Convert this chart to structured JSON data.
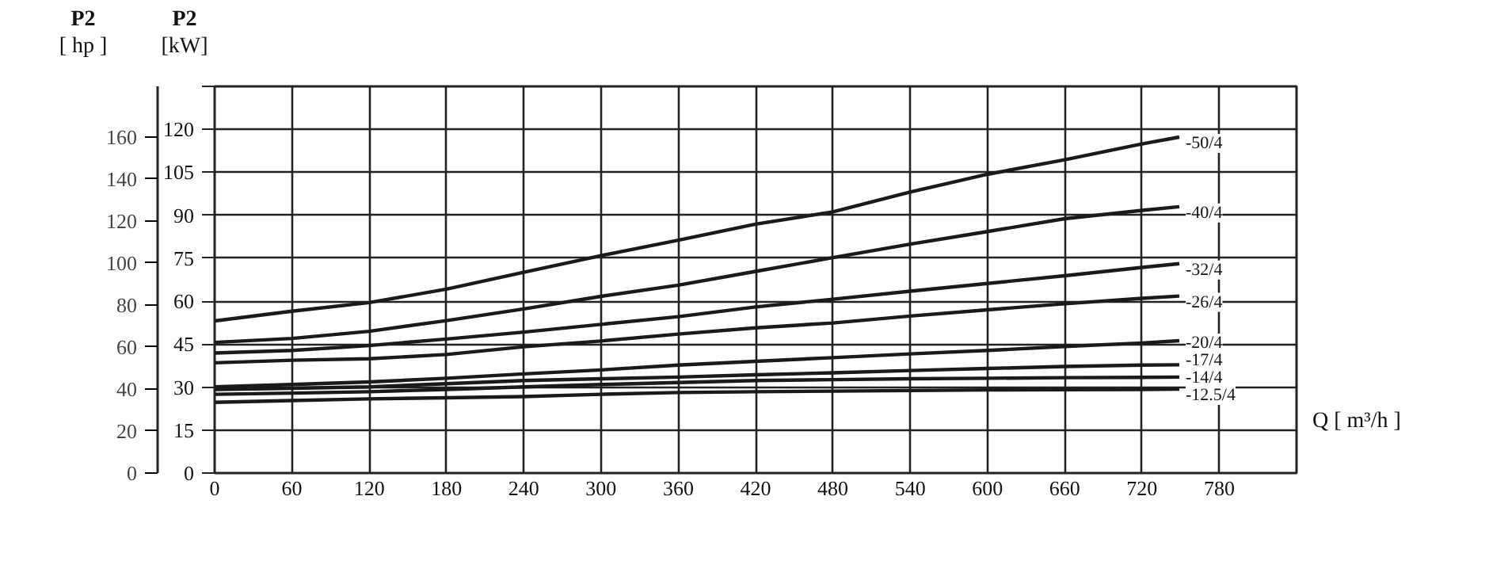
{
  "chart_data": {
    "type": "line",
    "xlabel": "Q [ m³/h ]",
    "ylabel": "P2 [kW]",
    "y2label": "P2 [ hp ]",
    "xlim": [
      0,
      840
    ],
    "xticks": [
      0,
      60,
      120,
      180,
      240,
      300,
      360,
      420,
      480,
      540,
      600,
      660,
      720,
      780,
      {
        "value": 840,
        "label": null
      }
    ],
    "ylim": [
      0,
      135
    ],
    "yticks": [
      0,
      15,
      30,
      45,
      60,
      75,
      90,
      105,
      120,
      {
        "value": 135,
        "label": null
      }
    ],
    "y2lim": [
      0,
      184
    ],
    "y2ticks": [
      0,
      20,
      40,
      60,
      80,
      100,
      120,
      140,
      160
    ],
    "grid": true,
    "legend": false,
    "marker": "none",
    "line_style": "solid",
    "x": [
      0,
      60,
      120,
      180,
      240,
      300,
      360,
      420,
      480,
      540,
      600,
      660,
      720,
      749
    ],
    "series": [
      {
        "name": "-50/4",
        "color": "#1a1a1a",
        "values": [
          53.1,
          56.5,
          59.5,
          64.2,
          70.1,
          75.9,
          81.3,
          86.9,
          91.2,
          98.1,
          104.3,
          109.4,
          114.9,
          117.3
        ]
      },
      {
        "name": "-40/4",
        "color": "#1a1a1a",
        "values": [
          45.6,
          47.0,
          49.5,
          53.2,
          57.3,
          61.7,
          65.6,
          70.4,
          75.2,
          79.9,
          84.3,
          88.8,
          91.7,
          93.0
        ]
      },
      {
        "name": "-32/4",
        "color": "#1a1a1a",
        "values": [
          41.9,
          42.8,
          44.5,
          46.8,
          49.2,
          51.9,
          54.6,
          58.0,
          60.7,
          63.5,
          66.2,
          68.9,
          71.8,
          73.1
        ]
      },
      {
        "name": "-26/4",
        "color": "#1a1a1a",
        "values": [
          38.5,
          39.4,
          39.9,
          41.4,
          44.1,
          46.1,
          48.5,
          50.7,
          52.4,
          54.8,
          57.0,
          59.1,
          61.0,
          61.8
        ]
      },
      {
        "name": "-20/4",
        "color": "#1a1a1a",
        "values": [
          30.1,
          30.9,
          31.8,
          33.1,
          34.6,
          36.0,
          37.7,
          39.0,
          40.3,
          41.6,
          42.8,
          44.2,
          45.4,
          46.2
        ]
      },
      {
        "name": "-17/4",
        "color": "#1a1a1a",
        "values": [
          29.2,
          29.6,
          30.1,
          31.2,
          32.3,
          32.9,
          33.5,
          34.3,
          35.0,
          35.8,
          36.5,
          37.2,
          37.7,
          37.8
        ]
      },
      {
        "name": "-14/4",
        "color": "#1a1a1a",
        "values": [
          27.5,
          27.9,
          28.4,
          29.2,
          30.1,
          30.9,
          31.6,
          32.3,
          32.6,
          32.9,
          33.1,
          33.3,
          33.4,
          33.5
        ]
      },
      {
        "name": "-12.5/4",
        "color": "#1a1a1a",
        "values": [
          24.7,
          25.3,
          25.9,
          26.3,
          26.7,
          27.5,
          28.1,
          28.4,
          28.6,
          28.8,
          29.0,
          29.1,
          29.2,
          29.3
        ]
      }
    ]
  }
}
